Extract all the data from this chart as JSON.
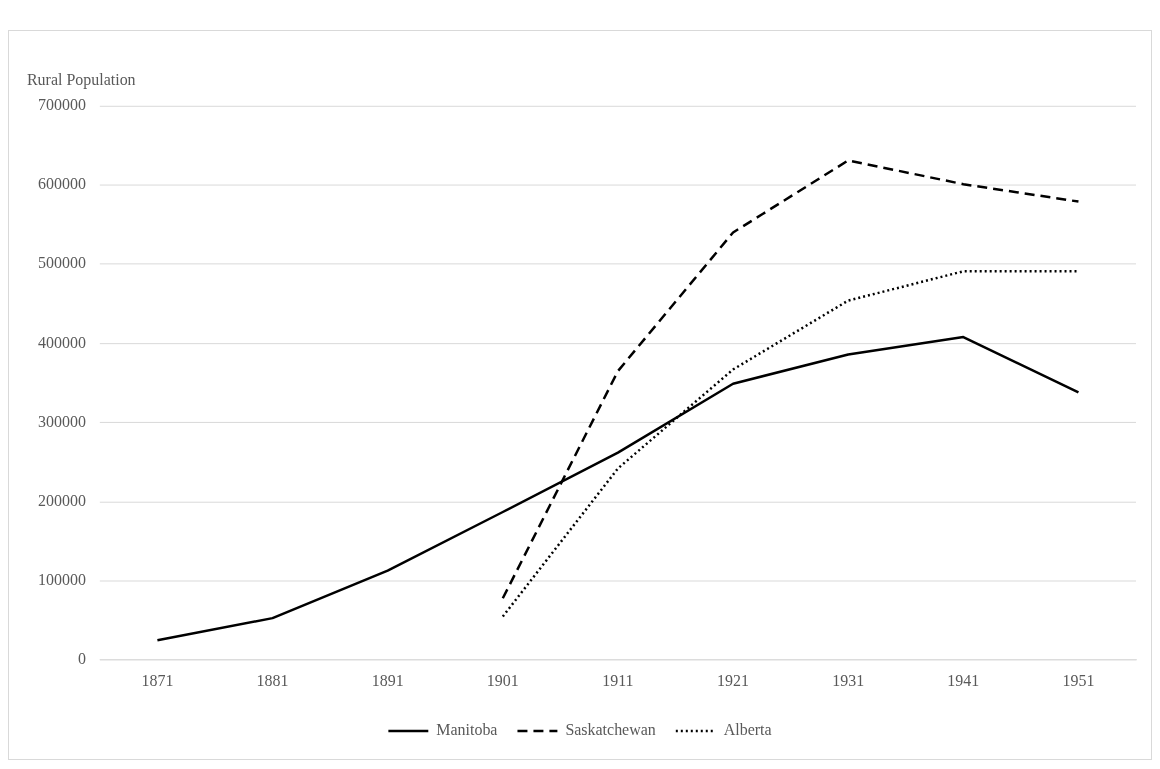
{
  "chart_data": {
    "type": "line",
    "ylabel": "Rural Population",
    "categories": [
      "1871",
      "1881",
      "1891",
      "1901",
      "1911",
      "1921",
      "1931",
      "1941",
      "1951"
    ],
    "series": [
      {
        "name": "Manitoba",
        "color": "#000000",
        "line_style": "solid",
        "values": [
          25000,
          53000,
          113000,
          187000,
          262000,
          349000,
          386000,
          408000,
          338000
        ]
      },
      {
        "name": "Saskatchewan",
        "color": "#000000",
        "line_style": "dashed",
        "values": [
          null,
          null,
          null,
          78000,
          365000,
          540000,
          631000,
          601000,
          579000
        ]
      },
      {
        "name": "Alberta",
        "color": "#000000",
        "line_style": "dotted",
        "values": [
          null,
          null,
          null,
          55000,
          242000,
          367000,
          454000,
          491000,
          491000
        ]
      }
    ],
    "ylim": [
      0,
      700000
    ],
    "yticks": [
      0,
      100000,
      200000,
      300000,
      400000,
      500000,
      600000,
      700000
    ],
    "grid": "y",
    "legend": "bottom",
    "marker": "none"
  }
}
